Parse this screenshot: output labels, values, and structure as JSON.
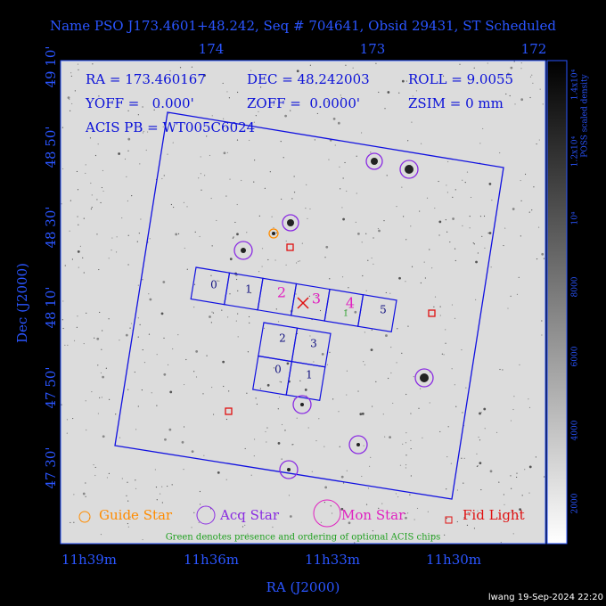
{
  "title": "Name PSO J173.4601+48.242, Seq # 704641, Obsid 29431, ST Scheduled",
  "top_ticks": [
    "174",
    "173",
    "172"
  ],
  "left_ticks": [
    "49 10'",
    "48 50'",
    "48 30'",
    "48 10'",
    "47 50'",
    "47 30'"
  ],
  "bottom_ticks": [
    "11h39m",
    "11h36m",
    "11h33m",
    "11h30m"
  ],
  "x_label": "RA (J2000)",
  "y_label": "Dec (J2000)",
  "info": [
    "RA = 173.460167",
    "DEC = 48.242003",
    "ROLL = 9.0055",
    "YOFF =   0.000'",
    "ZOFF =  0.0000'",
    "ZSIM = 0 mm",
    "ACIS PB = WT005C6024"
  ],
  "acis_i": [
    "0",
    "1",
    "2",
    "3",
    "4",
    "5"
  ],
  "acis_s": [
    "2",
    "3",
    "0",
    "1"
  ],
  "optional_chip": "1",
  "legend": [
    "Guide Star",
    "Acq Star",
    "Mon Star",
    "Fid Light"
  ],
  "note": "Green denotes presence and ordering of optional ACIS chips",
  "colorbar": {
    "ticks": [
      "2000",
      "4000",
      "6000",
      "8000",
      "10⁴",
      "1.2x10⁴",
      "1.4x10⁴"
    ],
    "label": "POSS scaled density"
  },
  "footer": "lwang 19-Sep-2024 22:20"
}
